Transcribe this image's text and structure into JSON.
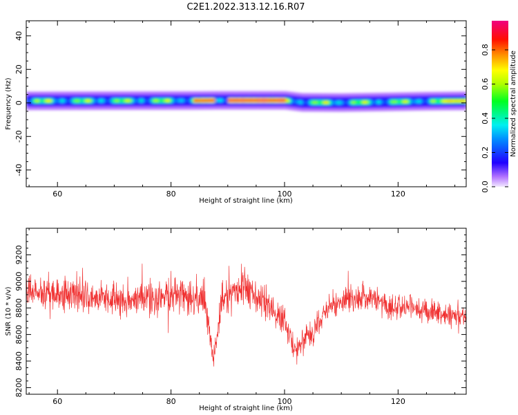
{
  "title": "C2E1.2022.313.12.16.R07",
  "colors": {
    "snr_line": "#f03030",
    "band_core": "#2010ff",
    "axis": "#000000"
  },
  "chart_data": [
    {
      "type": "heatmap",
      "xlabel": "Height of straight line (km)",
      "ylabel": "Frequency (Hz)",
      "xlim": [
        54.5,
        132
      ],
      "ylim": [
        -50,
        49
      ],
      "xticks": [
        60,
        80,
        100,
        120
      ],
      "yticks": [
        40,
        20,
        0,
        -20,
        -40
      ],
      "band": {
        "center_hz": [
          {
            "x": 54.5,
            "y": 1.2
          },
          {
            "x": 84,
            "y": 1.4
          },
          {
            "x": 88,
            "y": 1.5
          },
          {
            "x": 100,
            "y": 1.5
          },
          {
            "x": 103,
            "y": 0.3
          },
          {
            "x": 110,
            "y": 0.2
          },
          {
            "x": 118,
            "y": 0.6
          },
          {
            "x": 125,
            "y": 1.0
          },
          {
            "x": 132,
            "y": 1.2
          }
        ],
        "half_width_hz": 2.5,
        "hot_segments": [
          {
            "from": 84,
            "to": 87.5,
            "amplitude": 0.9
          },
          {
            "from": 90,
            "to": 100,
            "amplitude": 0.95
          },
          {
            "from": 128,
            "to": 132,
            "amplitude": 0.75
          }
        ]
      },
      "colorbar": {
        "label": "Normalized spectral amplitude",
        "ticks": [
          "0.0",
          "0.2",
          "0.4",
          "0.6",
          "0.8"
        ],
        "range": [
          0,
          0.97
        ],
        "stops": [
          {
            "v": 0.0,
            "c": "#f2e8ff"
          },
          {
            "v": 0.06,
            "c": "#b070ff"
          },
          {
            "v": 0.14,
            "c": "#2000ff"
          },
          {
            "v": 0.28,
            "c": "#0090ff"
          },
          {
            "v": 0.36,
            "c": "#00f0f0"
          },
          {
            "v": 0.5,
            "c": "#00ff20"
          },
          {
            "v": 0.6,
            "c": "#b0ff00"
          },
          {
            "v": 0.68,
            "c": "#ffff00"
          },
          {
            "v": 0.77,
            "c": "#ff9000"
          },
          {
            "v": 0.86,
            "c": "#ff1000"
          },
          {
            "v": 0.97,
            "c": "#f00080"
          }
        ]
      }
    },
    {
      "type": "line",
      "xlabel": "Height of straight line (km)",
      "ylabel": "SNR (10 * v/v)",
      "xlim": [
        54.5,
        132
      ],
      "ylim": [
        8150,
        9400
      ],
      "xticks": [
        60,
        80,
        100,
        120
      ],
      "yticks": [
        9200,
        9000,
        8800,
        8600,
        8400,
        8200
      ],
      "series": [
        {
          "color": "#f03030",
          "envelope": [
            {
              "x": 54.5,
              "mean": 8920,
              "spread": 170
            },
            {
              "x": 60,
              "mean": 8900,
              "spread": 190
            },
            {
              "x": 66,
              "mean": 8870,
              "spread": 180
            },
            {
              "x": 72,
              "mean": 8860,
              "spread": 190
            },
            {
              "x": 78,
              "mean": 8890,
              "spread": 200
            },
            {
              "x": 82,
              "mean": 8880,
              "spread": 220
            },
            {
              "x": 86,
              "mean": 8850,
              "spread": 200
            },
            {
              "x": 87.5,
              "mean": 8400,
              "spread": 150
            },
            {
              "x": 89,
              "mean": 8850,
              "spread": 200
            },
            {
              "x": 93,
              "mean": 8950,
              "spread": 230
            },
            {
              "x": 97,
              "mean": 8820,
              "spread": 170
            },
            {
              "x": 100,
              "mean": 8700,
              "spread": 140
            },
            {
              "x": 102,
              "mean": 8480,
              "spread": 140
            },
            {
              "x": 104,
              "mean": 8560,
              "spread": 150
            },
            {
              "x": 108,
              "mean": 8820,
              "spread": 150
            },
            {
              "x": 114,
              "mean": 8880,
              "spread": 150
            },
            {
              "x": 118,
              "mean": 8820,
              "spread": 140
            },
            {
              "x": 124,
              "mean": 8780,
              "spread": 130
            },
            {
              "x": 132,
              "mean": 8720,
              "spread": 120
            }
          ],
          "samples": 1500
        }
      ]
    }
  ]
}
